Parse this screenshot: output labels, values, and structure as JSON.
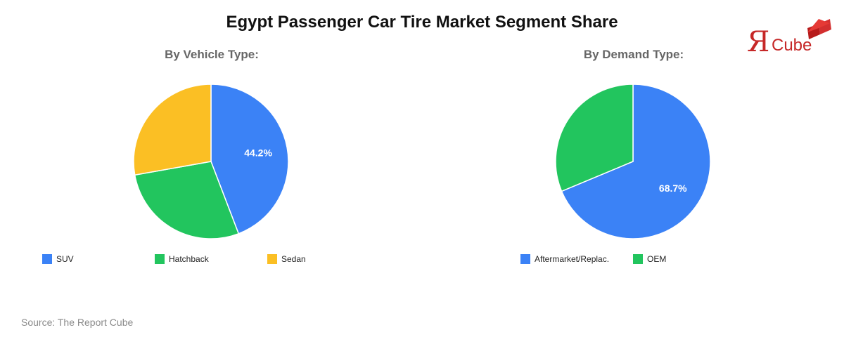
{
  "title": "Egypt Passenger Car Tire Market Segment Share",
  "source": "Source: The Report Cube",
  "logo": {
    "mark": "Я",
    "text": "Cube",
    "color": "#c62828"
  },
  "chart_data": [
    {
      "type": "pie",
      "title": "By Vehicle Type:",
      "labels": [
        "SUV",
        "Hatchback",
        "Sedan"
      ],
      "values": [
        44.2,
        28.0,
        27.8
      ],
      "colors": [
        "#3b82f6",
        "#22c55e",
        "#fbbf24"
      ],
      "data_labels": [
        "44.2%",
        "",
        ""
      ],
      "legend": "bottom"
    },
    {
      "type": "pie",
      "title": "By Demand Type:",
      "labels": [
        "Aftermarket/Replac.",
        "OEM"
      ],
      "values": [
        68.7,
        31.3
      ],
      "colors": [
        "#3b82f6",
        "#22c55e"
      ],
      "data_labels": [
        "68.7%",
        ""
      ],
      "legend": "bottom"
    }
  ]
}
